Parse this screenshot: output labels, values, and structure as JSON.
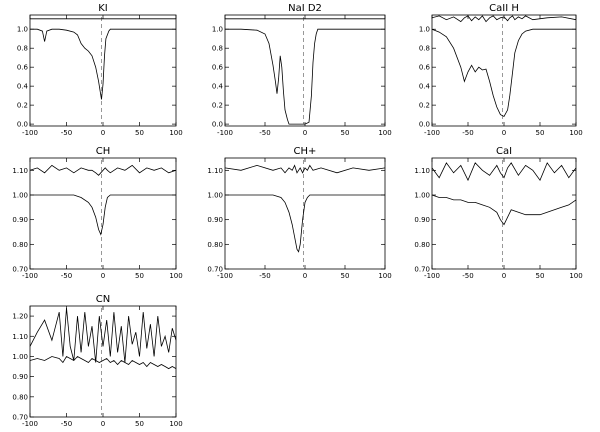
{
  "figure": {
    "panels": [
      {
        "title": "KI"
      },
      {
        "title": "NaI D2"
      },
      {
        "title": "CaII H"
      },
      {
        "title": "CH"
      },
      {
        "title": "CH+"
      },
      {
        "title": "CaI"
      },
      {
        "title": "CN"
      }
    ]
  },
  "chart_data": [
    {
      "type": "line",
      "title": "KI",
      "xlabel": "",
      "ylabel": "",
      "xlim": [
        -100,
        100
      ],
      "ylim": [
        -0.02,
        1.15
      ],
      "xticks": [
        "-100",
        "-50",
        "0",
        "50",
        "100"
      ],
      "yticks": [
        "0.0",
        "0.2",
        "0.4",
        "0.6",
        "0.8",
        "1.0"
      ],
      "reference_line_x": -2,
      "series": [
        {
          "x": [
            -100,
            -90,
            -83,
            -80,
            -77,
            -70,
            -60,
            -50,
            -40,
            -35,
            -30,
            -25,
            -20,
            -15,
            -10,
            -6,
            -4,
            -2,
            0,
            2,
            4,
            8,
            10,
            20,
            30,
            50,
            70,
            100
          ],
          "y": [
            1.11,
            1.11,
            1.11,
            1.11,
            1.11,
            1.11,
            1.11,
            1.11,
            1.11,
            1.11,
            1.11,
            1.11,
            1.11,
            1.11,
            1.11,
            1.11,
            1.11,
            1.11,
            1.11,
            1.11,
            1.11,
            1.11,
            1.11,
            1.11,
            1.11,
            1.11,
            1.11,
            1.11
          ]
        },
        {
          "x": [
            -100,
            -90,
            -83,
            -80,
            -77,
            -70,
            -60,
            -50,
            -40,
            -35,
            -30,
            -25,
            -20,
            -15,
            -10,
            -6,
            -4,
            -2,
            0,
            2,
            4,
            8,
            10,
            20,
            30,
            50,
            70,
            100
          ],
          "y": [
            1.0,
            1.0,
            0.98,
            0.87,
            0.98,
            1.0,
            1.0,
            0.99,
            0.97,
            0.94,
            0.85,
            0.8,
            0.77,
            0.72,
            0.6,
            0.45,
            0.35,
            0.26,
            0.42,
            0.72,
            0.9,
            0.98,
            1.0,
            1.0,
            1.0,
            1.0,
            1.0,
            1.0
          ]
        }
      ]
    },
    {
      "type": "line",
      "title": "NaI D2",
      "xlabel": "",
      "ylabel": "",
      "xlim": [
        -100,
        100
      ],
      "ylim": [
        -0.02,
        1.15
      ],
      "xticks": [
        "-100",
        "-50",
        "0",
        "50",
        "100"
      ],
      "yticks": [
        "0.0",
        "0.2",
        "0.4",
        "0.6",
        "0.8",
        "1.0"
      ],
      "reference_line_x": -2,
      "series": [
        {
          "x": [
            -100,
            -80,
            -60,
            -50,
            -45,
            -40,
            -37,
            -35,
            -33,
            -31,
            -29,
            -27,
            -25,
            -22,
            -20,
            -15,
            -10,
            -5,
            0,
            5,
            8,
            10,
            12,
            14,
            16,
            20,
            30,
            50,
            70,
            100
          ],
          "y": [
            1.11,
            1.11,
            1.11,
            1.11,
            1.11,
            1.11,
            1.11,
            1.11,
            1.11,
            1.11,
            1.11,
            1.11,
            1.11,
            1.11,
            1.11,
            1.11,
            1.11,
            1.11,
            1.11,
            1.11,
            1.11,
            1.11,
            1.11,
            1.11,
            1.11,
            1.11,
            1.11,
            1.11,
            1.11,
            1.11
          ]
        },
        {
          "x": [
            -100,
            -80,
            -60,
            -50,
            -45,
            -40,
            -37,
            -35,
            -33,
            -31,
            -29,
            -27,
            -25,
            -22,
            -20,
            -15,
            -10,
            -5,
            0,
            5,
            8,
            10,
            12,
            14,
            16,
            20,
            30,
            50,
            70,
            100
          ],
          "y": [
            1.0,
            1.0,
            0.99,
            0.95,
            0.85,
            0.62,
            0.45,
            0.32,
            0.48,
            0.72,
            0.6,
            0.35,
            0.15,
            0.05,
            0.0,
            0.0,
            0.0,
            0.0,
            0.0,
            0.02,
            0.3,
            0.65,
            0.85,
            0.95,
            1.0,
            1.0,
            1.0,
            1.0,
            1.0,
            1.0
          ]
        }
      ]
    },
    {
      "type": "line",
      "title": "CaII H",
      "xlabel": "",
      "ylabel": "",
      "xlim": [
        -100,
        100
      ],
      "ylim": [
        -0.02,
        1.15
      ],
      "xticks": [
        "-100",
        "-50",
        "0",
        "50",
        "100"
      ],
      "yticks": [
        "0.0",
        "0.2",
        "0.4",
        "0.6",
        "0.8",
        "1.0"
      ],
      "reference_line_x": -2,
      "series": [
        {
          "x": [
            -100,
            -90,
            -80,
            -70,
            -60,
            -55,
            -50,
            -45,
            -40,
            -35,
            -30,
            -25,
            -20,
            -15,
            -10,
            -5,
            0,
            5,
            8,
            12,
            15,
            20,
            25,
            30,
            40,
            60,
            80,
            100
          ],
          "y": [
            1.12,
            1.14,
            1.1,
            1.13,
            1.08,
            1.12,
            1.14,
            1.09,
            1.13,
            1.1,
            1.14,
            1.08,
            1.12,
            1.14,
            1.1,
            1.12,
            1.13,
            1.09,
            1.12,
            1.14,
            1.1,
            1.13,
            1.11,
            1.14,
            1.1,
            1.12,
            1.13,
            1.1
          ]
        },
        {
          "x": [
            -100,
            -90,
            -80,
            -70,
            -60,
            -55,
            -50,
            -45,
            -40,
            -35,
            -30,
            -25,
            -20,
            -15,
            -10,
            -5,
            0,
            5,
            8,
            12,
            15,
            20,
            25,
            30,
            40,
            60,
            80,
            100
          ],
          "y": [
            1.0,
            0.97,
            0.92,
            0.8,
            0.6,
            0.45,
            0.55,
            0.62,
            0.55,
            0.6,
            0.57,
            0.58,
            0.45,
            0.3,
            0.18,
            0.1,
            0.08,
            0.15,
            0.3,
            0.55,
            0.75,
            0.88,
            0.95,
            0.98,
            1.0,
            1.0,
            1.0,
            1.0
          ]
        }
      ]
    },
    {
      "type": "line",
      "title": "CH",
      "xlabel": "",
      "ylabel": "",
      "xlim": [
        -100,
        100
      ],
      "ylim": [
        0.7,
        1.15
      ],
      "xticks": [
        "-100",
        "-50",
        "0",
        "50",
        "100"
      ],
      "yticks": [
        "0.70",
        "0.80",
        "0.90",
        "1.00",
        "1.10"
      ],
      "reference_line_x": -2,
      "series": [
        {
          "x": [
            -100,
            -90,
            -80,
            -70,
            -60,
            -50,
            -40,
            -30,
            -20,
            -15,
            -10,
            -6,
            -3,
            0,
            3,
            6,
            10,
            20,
            30,
            40,
            50,
            60,
            70,
            80,
            90,
            100
          ],
          "y": [
            1.1,
            1.11,
            1.09,
            1.12,
            1.1,
            1.11,
            1.09,
            1.11,
            1.1,
            1.1,
            1.09,
            1.08,
            1.09,
            1.1,
            1.11,
            1.1,
            1.09,
            1.11,
            1.1,
            1.12,
            1.09,
            1.11,
            1.1,
            1.11,
            1.09,
            1.1
          ]
        },
        {
          "x": [
            -100,
            -90,
            -80,
            -70,
            -60,
            -50,
            -40,
            -30,
            -20,
            -15,
            -10,
            -6,
            -3,
            0,
            3,
            6,
            10,
            20,
            30,
            40,
            50,
            60,
            70,
            80,
            90,
            100
          ],
          "y": [
            1.0,
            1.0,
            1.0,
            1.0,
            1.0,
            1.0,
            1.0,
            0.99,
            0.97,
            0.95,
            0.91,
            0.86,
            0.84,
            0.88,
            0.95,
            0.99,
            1.0,
            1.0,
            1.0,
            1.0,
            1.0,
            1.0,
            1.0,
            1.0,
            1.0,
            1.0
          ]
        }
      ]
    },
    {
      "type": "line",
      "title": "CH+",
      "xlabel": "",
      "ylabel": "",
      "xlim": [
        -100,
        100
      ],
      "ylim": [
        0.7,
        1.15
      ],
      "xticks": [
        "-100",
        "-50",
        "0",
        "50",
        "100"
      ],
      "yticks": [
        "0.70",
        "0.80",
        "0.90",
        "1.00",
        "1.10"
      ],
      "reference_line_x": -2,
      "series": [
        {
          "x": [
            -100,
            -80,
            -60,
            -40,
            -30,
            -25,
            -20,
            -16,
            -13,
            -10,
            -8,
            -6,
            -3,
            0,
            3,
            6,
            10,
            20,
            40,
            60,
            80,
            100
          ],
          "y": [
            1.11,
            1.1,
            1.12,
            1.1,
            1.11,
            1.09,
            1.11,
            1.1,
            1.12,
            1.09,
            1.1,
            1.11,
            1.09,
            1.11,
            1.1,
            1.12,
            1.1,
            1.11,
            1.09,
            1.11,
            1.1,
            1.11
          ]
        },
        {
          "x": [
            -100,
            -80,
            -60,
            -40,
            -30,
            -25,
            -20,
            -16,
            -13,
            -10,
            -8,
            -6,
            -3,
            0,
            3,
            6,
            10,
            20,
            40,
            60,
            80,
            100
          ],
          "y": [
            1.0,
            1.0,
            1.0,
            1.0,
            0.99,
            0.97,
            0.93,
            0.88,
            0.83,
            0.78,
            0.77,
            0.8,
            0.9,
            0.97,
            0.99,
            1.0,
            1.0,
            1.0,
            1.0,
            1.0,
            1.0,
            1.0
          ]
        }
      ]
    },
    {
      "type": "line",
      "title": "CaI",
      "xlabel": "",
      "ylabel": "",
      "xlim": [
        -100,
        100
      ],
      "ylim": [
        0.7,
        1.15
      ],
      "xticks": [
        "-100",
        "-50",
        "0",
        "50",
        "100"
      ],
      "yticks": [
        "0.70",
        "0.80",
        "0.90",
        "1.00",
        "1.10"
      ],
      "reference_line_x": -2,
      "series": [
        {
          "x": [
            -100,
            -90,
            -80,
            -70,
            -60,
            -50,
            -40,
            -30,
            -20,
            -10,
            -5,
            0,
            5,
            10,
            20,
            30,
            40,
            50,
            60,
            70,
            80,
            90,
            100
          ],
          "y": [
            1.11,
            1.07,
            1.13,
            1.09,
            1.12,
            1.06,
            1.13,
            1.1,
            1.08,
            1.12,
            1.09,
            1.07,
            1.11,
            1.13,
            1.08,
            1.12,
            1.1,
            1.06,
            1.13,
            1.09,
            1.12,
            1.07,
            1.11
          ]
        },
        {
          "x": [
            -100,
            -90,
            -80,
            -70,
            -60,
            -50,
            -40,
            -30,
            -20,
            -10,
            -5,
            0,
            5,
            10,
            20,
            30,
            40,
            50,
            60,
            70,
            80,
            90,
            100
          ],
          "y": [
            1.0,
            0.99,
            0.99,
            0.98,
            0.98,
            0.97,
            0.97,
            0.96,
            0.95,
            0.93,
            0.9,
            0.88,
            0.91,
            0.94,
            0.93,
            0.92,
            0.92,
            0.92,
            0.93,
            0.94,
            0.95,
            0.96,
            0.98
          ]
        }
      ]
    },
    {
      "type": "line",
      "title": "CN",
      "xlabel": "",
      "ylabel": "",
      "xlim": [
        -100,
        100
      ],
      "ylim": [
        0.7,
        1.25
      ],
      "xticks": [
        "-100",
        "-50",
        "0",
        "50",
        "100"
      ],
      "yticks": [
        "0.70",
        "0.80",
        "0.90",
        "1.00",
        "1.10",
        "1.20"
      ],
      "reference_line_x": -2,
      "series": [
        {
          "x": [
            -100,
            -90,
            -80,
            -70,
            -60,
            -55,
            -50,
            -45,
            -40,
            -35,
            -30,
            -25,
            -20,
            -15,
            -10,
            -5,
            0,
            5,
            10,
            15,
            20,
            25,
            30,
            35,
            40,
            45,
            50,
            55,
            60,
            65,
            70,
            75,
            80,
            85,
            90,
            95,
            100
          ],
          "y": [
            1.05,
            1.12,
            1.18,
            1.08,
            1.22,
            1.0,
            1.24,
            1.05,
            0.98,
            1.2,
            1.02,
            1.22,
            1.05,
            1.15,
            0.97,
            1.2,
            1.05,
            1.18,
            1.0,
            1.22,
            1.02,
            1.15,
            0.97,
            1.2,
            1.06,
            1.12,
            1.0,
            1.22,
            1.04,
            1.16,
            1.0,
            1.2,
            1.05,
            1.1,
            1.02,
            1.14,
            1.08
          ]
        },
        {
          "x": [
            -100,
            -90,
            -80,
            -70,
            -60,
            -55,
            -50,
            -45,
            -40,
            -35,
            -30,
            -25,
            -20,
            -15,
            -10,
            -5,
            0,
            5,
            10,
            15,
            20,
            25,
            30,
            35,
            40,
            45,
            50,
            55,
            60,
            65,
            70,
            75,
            80,
            85,
            90,
            95,
            100
          ],
          "y": [
            0.98,
            0.99,
            0.98,
            1.0,
            0.99,
            0.97,
            1.0,
            0.99,
            0.98,
            1.0,
            0.99,
            0.98,
            0.97,
            0.99,
            0.98,
            0.97,
            0.98,
            0.99,
            0.97,
            0.98,
            0.96,
            0.98,
            0.97,
            0.96,
            0.98,
            0.97,
            0.96,
            0.97,
            0.95,
            0.97,
            0.96,
            0.95,
            0.96,
            0.95,
            0.94,
            0.95,
            0.94
          ]
        }
      ]
    }
  ]
}
